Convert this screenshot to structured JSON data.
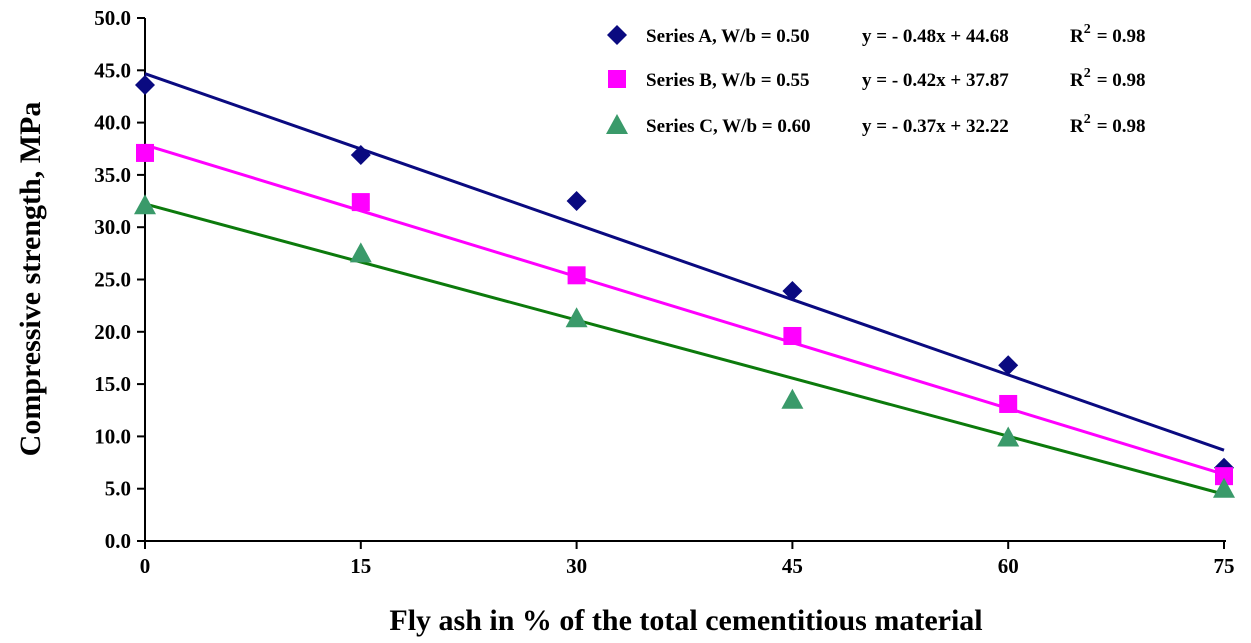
{
  "chart_data": {
    "type": "scatter",
    "xlabel": "Fly ash in % of the total cementitious material",
    "ylabel": "Compressive strength, MPa",
    "xlim": [
      0,
      75
    ],
    "ylim": [
      0,
      50
    ],
    "xticks": [
      0,
      15,
      30,
      45,
      60,
      75
    ],
    "yticks": [
      0,
      5,
      10,
      15,
      20,
      25,
      30,
      35,
      40,
      45,
      50
    ],
    "ytick_labels": [
      "0.0",
      "5.0",
      "10.0",
      "15.0",
      "20.0",
      "25.0",
      "30.0",
      "35.0",
      "40.0",
      "45.0",
      "50.0"
    ],
    "grid": false,
    "legend_position": "top-right",
    "x": [
      0,
      15,
      30,
      45,
      60,
      75
    ],
    "series": [
      {
        "name": "Series A, W/b = 0.50",
        "marker": "diamond",
        "color": "#0a0a80",
        "values": [
          43.6,
          36.9,
          32.5,
          23.9,
          16.8,
          7.0
        ],
        "trendline": {
          "slope": -0.48,
          "intercept": 44.68,
          "equation": "y = - 0.48x + 44.68",
          "r2_label": "R",
          "r2_sup": "2",
          "r2_value": "= 0.98"
        }
      },
      {
        "name": "Series B, W/b = 0.55",
        "marker": "square",
        "color": "#ff00ff",
        "values": [
          37.1,
          32.4,
          25.4,
          19.6,
          13.1,
          6.2
        ],
        "trendline": {
          "slope": -0.42,
          "intercept": 37.87,
          "equation": "y = - 0.42x + 37.87",
          "r2_label": "R",
          "r2_sup": "2",
          "r2_value": "= 0.98"
        }
      },
      {
        "name": "Series C, W/b = 0.60",
        "marker": "triangle",
        "color": "#3a9a6a",
        "line_color": "#0c7a0c",
        "values": [
          32.1,
          27.5,
          21.3,
          13.5,
          9.9,
          5.0
        ],
        "trendline": {
          "slope": -0.37,
          "intercept": 32.22,
          "equation": "y = - 0.37x + 32.22",
          "r2_label": "R",
          "r2_sup": "2",
          "r2_value": "= 0.98"
        }
      }
    ]
  }
}
